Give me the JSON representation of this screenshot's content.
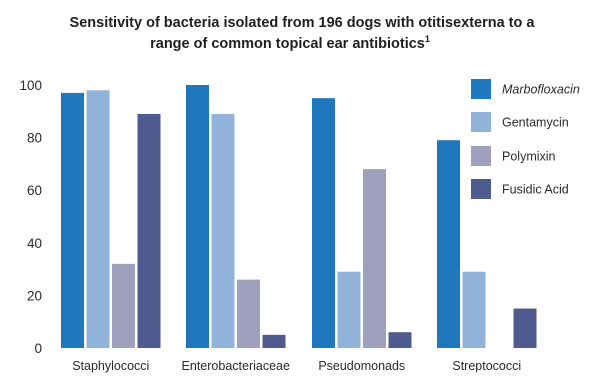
{
  "chart_data": {
    "type": "bar",
    "title": "Sensitivity of bacteria isolated from 196 dogs with otitisexterna to a range of common topical ear antibiotics",
    "title_lines": [
      "Sensitivity of bacteria isolated from 196 dogs with otitisexterna to a",
      "range of common topical ear antibiotics"
    ],
    "title_footnote": "1",
    "xlabel": "",
    "ylabel": "",
    "ylim": [
      0,
      100
    ],
    "yticks": [
      "0",
      "20",
      "40",
      "60",
      "80",
      "100"
    ],
    "grid": false,
    "legend_position": "right",
    "categories": [
      "Staphylococci",
      "Enterobacteriaceae",
      "Pseudomonads",
      "Streptococci"
    ],
    "series": [
      {
        "name": "Marbofloxacin",
        "italic": true,
        "color": "#1f78be",
        "values": [
          97,
          100,
          95,
          79
        ]
      },
      {
        "name": "Gentamycin",
        "color": "#92b4db",
        "values": [
          98,
          89,
          29,
          29
        ]
      },
      {
        "name": "Polymixin",
        "color": "#9fa0bd",
        "values": [
          32,
          26,
          68,
          null
        ]
      },
      {
        "name": "Fusidic Acid",
        "color": "#4f5a8e",
        "values": [
          89,
          5,
          6,
          15
        ]
      }
    ]
  }
}
